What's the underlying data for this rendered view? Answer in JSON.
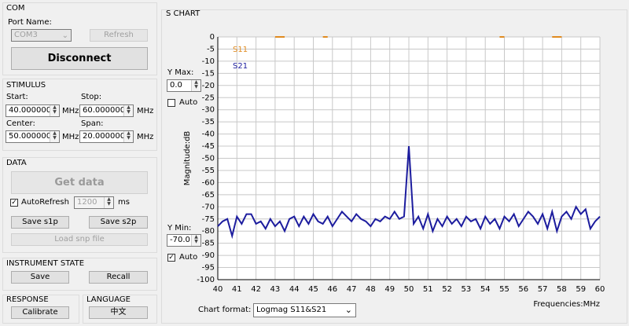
{
  "com": {
    "title": "COM",
    "port_label": "Port Name:",
    "port": "COM3",
    "refresh": "Refresh",
    "disconnect": "Disconnect"
  },
  "stimulus": {
    "title": "STIMULUS",
    "start_label": "Start:",
    "start": "40.000000",
    "stop_label": "Stop:",
    "stop": "60.000000",
    "center_label": "Center:",
    "center": "50.000000",
    "span_label": "Span:",
    "span": "20.000000",
    "unit": "MHz"
  },
  "data": {
    "title": "DATA",
    "get_data": "Get data",
    "auto_refresh": "AutoRefresh",
    "interval": "1200",
    "interval_unit": "ms",
    "save_s1p": "Save s1p",
    "save_s2p": "Save s2p",
    "load": "Load snp file"
  },
  "instrument_state": {
    "title": "INSTRUMENT STATE",
    "save": "Save",
    "recall": "Recall"
  },
  "response": {
    "title": "RESPONSE",
    "calibrate": "Calibrate"
  },
  "language": {
    "title": "LANGUAGE",
    "button": "中文"
  },
  "chart_panel": {
    "title": "S CHART",
    "ymax_label": "Y Max:",
    "ymax": "0.0",
    "auto": "Auto",
    "ymin_label": "Y Min:",
    "ymin": "-70.0",
    "format_label": "Chart format:",
    "format": "Logmag S11&S21"
  },
  "chart_data": {
    "type": "line",
    "y_label": "Magnitude:dB",
    "x_label": "Frequencies:MHz",
    "x": [
      40,
      40.25,
      40.5,
      40.75,
      41,
      41.25,
      41.5,
      41.75,
      42,
      42.25,
      42.5,
      42.75,
      43,
      43.25,
      43.5,
      43.75,
      44,
      44.25,
      44.5,
      44.75,
      45,
      45.25,
      45.5,
      45.75,
      46,
      46.25,
      46.5,
      46.75,
      47,
      47.25,
      47.5,
      47.75,
      48,
      48.25,
      48.5,
      48.75,
      49,
      49.25,
      49.5,
      49.75,
      50,
      50.25,
      50.5,
      50.75,
      51,
      51.25,
      51.5,
      51.75,
      52,
      52.25,
      52.5,
      52.75,
      53,
      53.25,
      53.5,
      53.75,
      54,
      54.25,
      54.5,
      54.75,
      55,
      55.25,
      55.5,
      55.75,
      56,
      56.25,
      56.5,
      56.75,
      57,
      57.25,
      57.5,
      57.75,
      58,
      58.25,
      58.5,
      58.75,
      59,
      59.25,
      59.5,
      59.75,
      60
    ],
    "series": [
      {
        "name": "S11",
        "color": "#e08a1e",
        "values": [
          null,
          null,
          null,
          null,
          null,
          null,
          null,
          null,
          null,
          null,
          null,
          null,
          0,
          0,
          0,
          null,
          null,
          null,
          null,
          null,
          null,
          null,
          0,
          0,
          null,
          null,
          null,
          null,
          null,
          null,
          null,
          null,
          null,
          null,
          null,
          null,
          null,
          null,
          null,
          null,
          null,
          null,
          null,
          null,
          null,
          null,
          null,
          null,
          null,
          null,
          null,
          null,
          null,
          null,
          null,
          null,
          null,
          null,
          null,
          0,
          0,
          null,
          null,
          null,
          null,
          null,
          null,
          null,
          null,
          null,
          0,
          0,
          0,
          null,
          null,
          null,
          null,
          null,
          null,
          null,
          null
        ]
      },
      {
        "name": "S21",
        "color": "#1c1c9e",
        "values": [
          -78,
          -76,
          -75,
          -82,
          -74,
          -77,
          -73,
          -73,
          -77,
          -76,
          -79,
          -75,
          -78,
          -76,
          -80,
          -75,
          -74,
          -78,
          -74,
          -77,
          -73,
          -76,
          -77,
          -74,
          -78,
          -75,
          -72,
          -74,
          -76,
          -73,
          -75,
          -76,
          -78,
          -75,
          -76,
          -74,
          -75,
          -72,
          -75,
          -74,
          -45,
          -77,
          -74,
          -79,
          -73,
          -80,
          -75,
          -78,
          -74,
          -77,
          -75,
          -78,
          -74,
          -76,
          -75,
          -79,
          -74,
          -77,
          -75,
          -79,
          -74,
          -76,
          -73,
          -78,
          -75,
          -72,
          -74,
          -77,
          -73,
          -79,
          -72,
          -80,
          -74,
          -72,
          -75,
          -70,
          -73,
          -71,
          -79,
          -76,
          -74
        ]
      }
    ],
    "xlim": [
      40,
      60
    ],
    "ylim": [
      -100,
      0
    ],
    "xticks": [
      40,
      41,
      42,
      43,
      44,
      45,
      46,
      47,
      48,
      49,
      50,
      51,
      52,
      53,
      54,
      55,
      56,
      57,
      58,
      59,
      60
    ],
    "yticks": [
      0,
      -5,
      -10,
      -15,
      -20,
      -25,
      -30,
      -35,
      -40,
      -45,
      -50,
      -55,
      -60,
      -65,
      -70,
      -75,
      -80,
      -85,
      -90,
      -95,
      -100
    ],
    "grid": true
  }
}
